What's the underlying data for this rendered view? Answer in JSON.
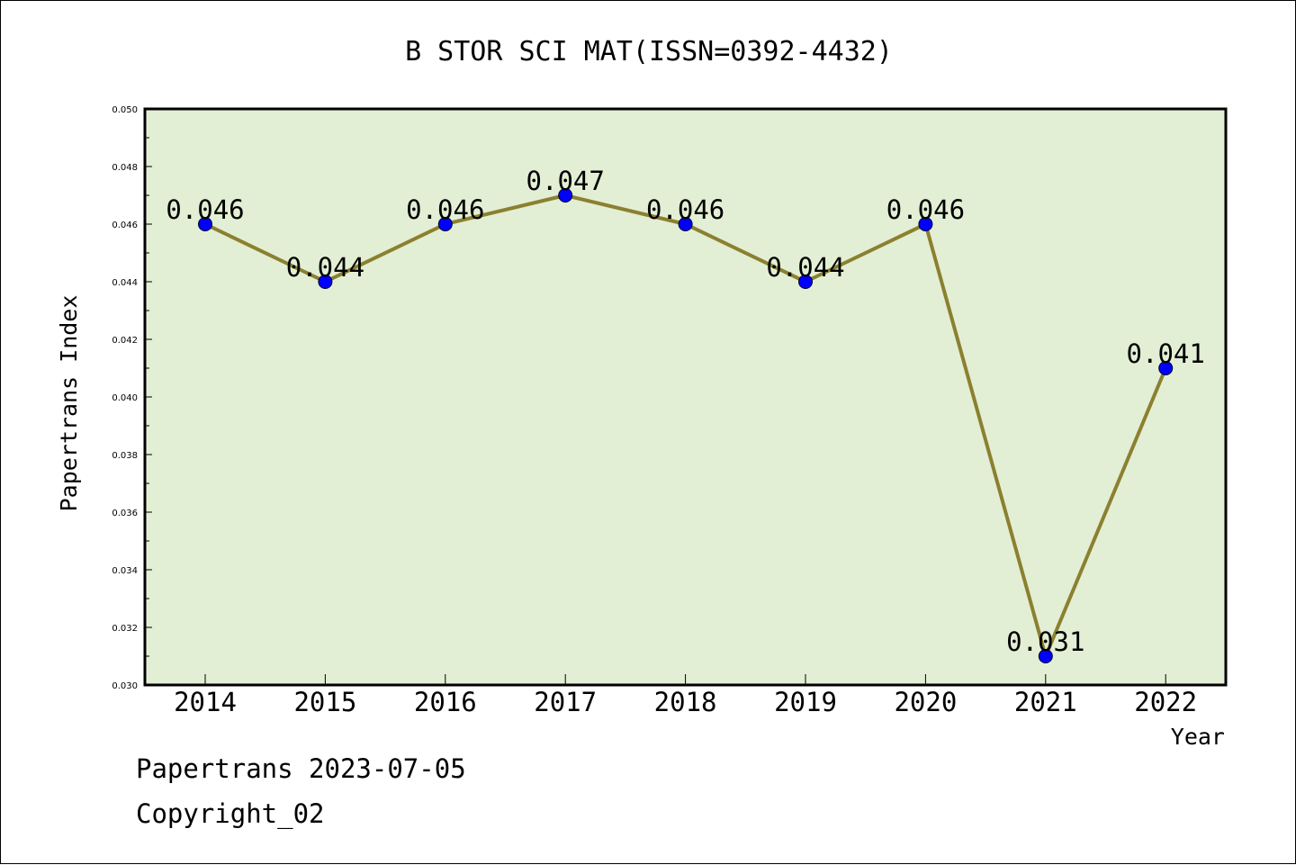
{
  "chart_data": {
    "type": "line",
    "title": "B STOR SCI MAT(ISSN=0392-4432)",
    "xlabel": "Year",
    "ylabel": "Papertrans Index",
    "categories": [
      "2014",
      "2015",
      "2016",
      "2017",
      "2018",
      "2019",
      "2020",
      "2021",
      "2022"
    ],
    "values": [
      0.046,
      0.044,
      0.046,
      0.047,
      0.046,
      0.044,
      0.046,
      0.031,
      0.041
    ],
    "data_labels": [
      "0.046",
      "0.044",
      "0.046",
      "0.047",
      "0.046",
      "0.044",
      "0.046",
      "0.031",
      "0.041"
    ],
    "ylim": [
      0.03,
      0.05
    ],
    "yticks": [
      "0.030",
      "0.032",
      "0.034",
      "0.036",
      "0.038",
      "0.040",
      "0.042",
      "0.044",
      "0.046",
      "0.048",
      "0.050"
    ],
    "grid": false,
    "legend": "none",
    "colors": {
      "plot_background": "#e2efd4",
      "line": "#8b8030",
      "marker": "#0000ff"
    }
  },
  "footer": {
    "line1": "Papertrans 2023-07-05",
    "line2": "Copyright_02"
  }
}
